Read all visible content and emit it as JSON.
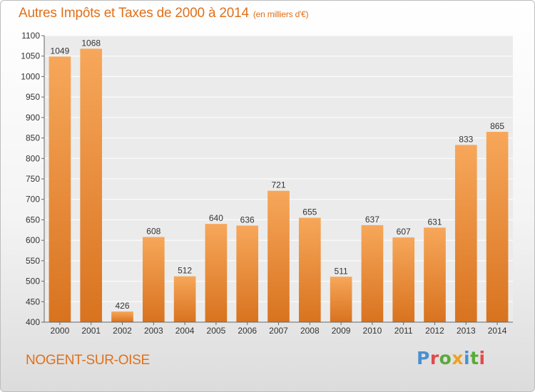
{
  "header": {
    "title": "Autres Impôts et Taxes de 2000 à 2014",
    "subtitle": "(en milliers d'€)"
  },
  "footer": {
    "commune": "NOGENT-SUR-OISE",
    "brand": "Proxiti"
  },
  "colors": {
    "accent": "#e0701a",
    "bar_top": "#f7a75a",
    "bar_bottom": "#d8731f",
    "logo_letters": [
      "#4a90d0",
      "#e34a4a",
      "#5aaa3a",
      "#f0a020",
      "#4a90d0",
      "#5aaa3a",
      "#e34a4a"
    ]
  },
  "chart_data": {
    "type": "bar",
    "categories": [
      "2000",
      "2001",
      "2002",
      "2003",
      "2004",
      "2005",
      "2006",
      "2007",
      "2008",
      "2009",
      "2010",
      "2011",
      "2012",
      "2013",
      "2014"
    ],
    "values": [
      1049,
      1068,
      426,
      608,
      512,
      640,
      636,
      721,
      655,
      511,
      637,
      607,
      631,
      833,
      865
    ],
    "ylim": [
      400,
      1100
    ],
    "yticks": [
      400,
      450,
      500,
      550,
      600,
      650,
      700,
      750,
      800,
      850,
      900,
      950,
      1000,
      1050,
      1100
    ],
    "grid": true,
    "data_labels": true,
    "xlabel": "",
    "ylabel": ""
  }
}
